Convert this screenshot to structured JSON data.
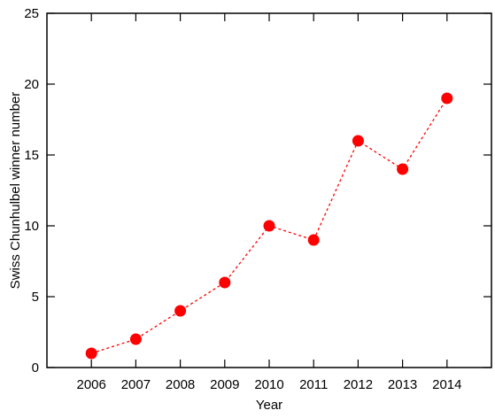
{
  "chart_data": {
    "type": "line",
    "title": "",
    "xlabel": "Year",
    "ylabel": "Swiss Chunhulbel winner number",
    "x": [
      2006,
      2007,
      2008,
      2009,
      2010,
      2011,
      2012,
      2013,
      2014
    ],
    "y": [
      1,
      2,
      4,
      6,
      10,
      9,
      16,
      14,
      19
    ],
    "x_tick_labels": [
      "2006",
      "2007",
      "2008",
      "2009",
      "2010",
      "2011",
      "2012",
      "2013",
      "2014"
    ],
    "y_ticks": [
      0,
      5,
      10,
      15,
      20,
      25
    ],
    "y_tick_labels": [
      "0",
      "5",
      "10",
      "15",
      "20",
      "25"
    ],
    "xlim": [
      2005,
      2015
    ],
    "ylim": [
      0,
      25
    ],
    "grid": false,
    "legend": "none",
    "line_style": "dashed",
    "marker": "filled-circle",
    "series_color": "#ff0000"
  }
}
